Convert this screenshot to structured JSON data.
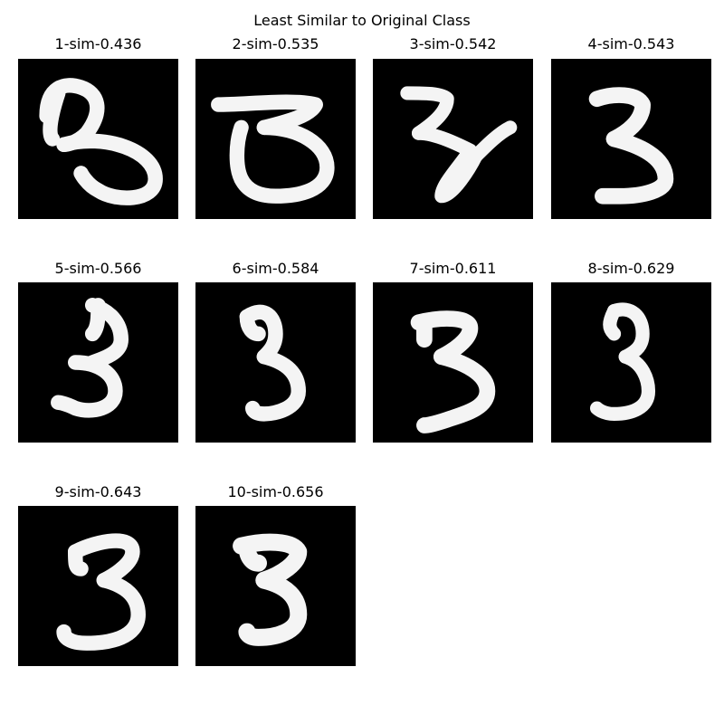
{
  "figure": {
    "title": "Least Similar to Original Class"
  },
  "panels": [
    {
      "title": "1-sim-0.436",
      "image": "digit-3-handwritten"
    },
    {
      "title": "2-sim-0.535",
      "image": "digit-3-handwritten"
    },
    {
      "title": "3-sim-0.542",
      "image": "digit-3-handwritten"
    },
    {
      "title": "4-sim-0.543",
      "image": "digit-3-handwritten"
    },
    {
      "title": "5-sim-0.566",
      "image": "digit-3-handwritten"
    },
    {
      "title": "6-sim-0.584",
      "image": "digit-3-handwritten"
    },
    {
      "title": "7-sim-0.611",
      "image": "digit-3-handwritten"
    },
    {
      "title": "8-sim-0.629",
      "image": "digit-3-handwritten"
    },
    {
      "title": "9-sim-0.643",
      "image": "digit-3-handwritten"
    },
    {
      "title": "10-sim-0.656",
      "image": "digit-3-handwritten"
    }
  ],
  "colors": {
    "background": "#ffffff",
    "panel": "#000000",
    "stroke": "#f4f4f4"
  }
}
